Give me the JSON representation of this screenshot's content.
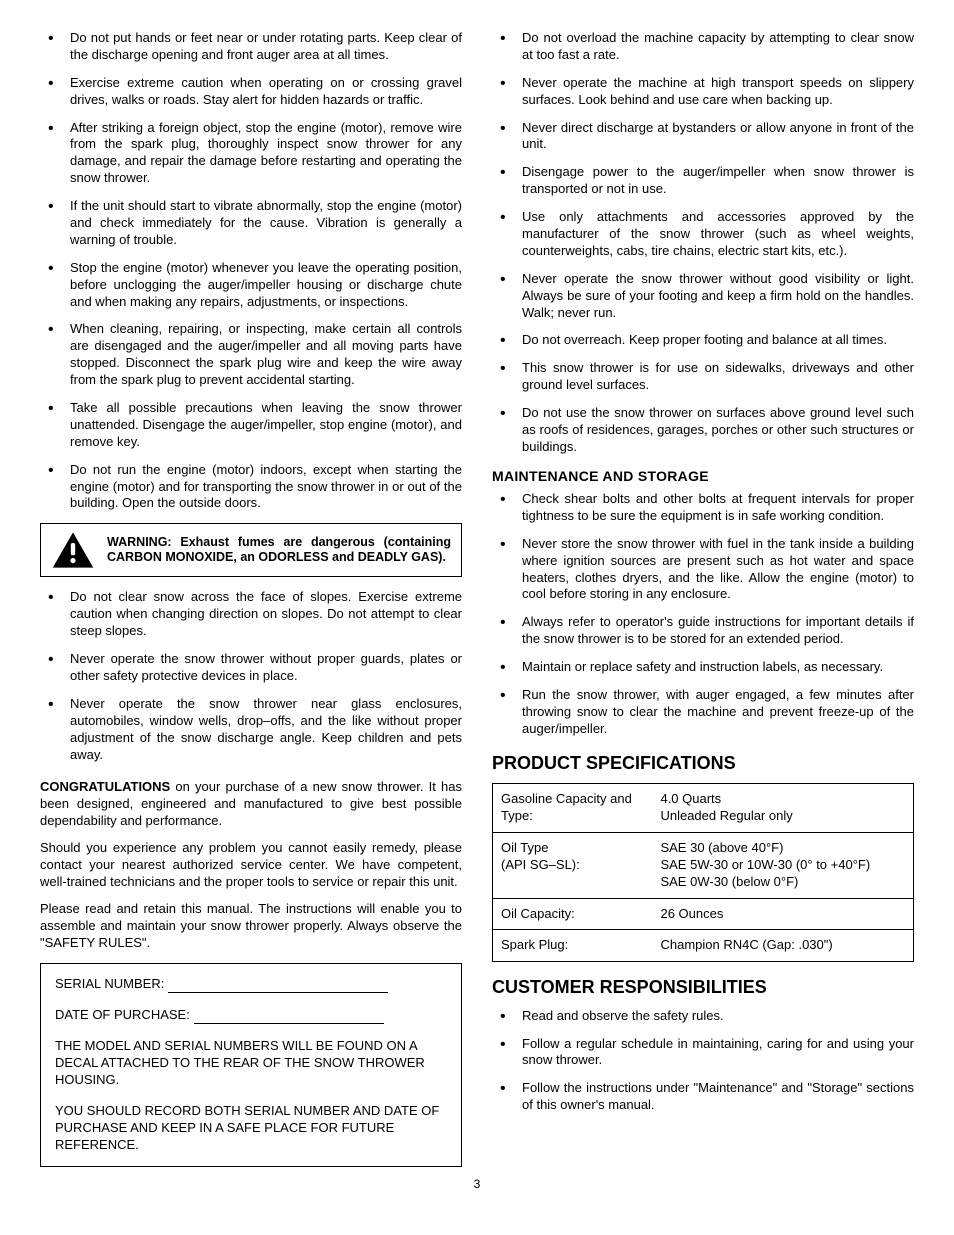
{
  "left_bullets_1": [
    "Do not put hands or feet near or under rotating parts. Keep clear of the discharge opening and front auger area at all times.",
    "Exercise extreme caution when operating on or crossing gravel drives, walks or roads. Stay alert for hidden hazards or traffic.",
    "After striking a foreign object, stop the engine (motor), remove wire from the spark plug, thoroughly inspect snow thrower for any damage, and repair the damage before restarting and operating the snow thrower.",
    "If the unit should start to vibrate abnormally, stop the engine (motor) and check immediately for the cause. Vibration is generally a warning of trouble.",
    "Stop the engine (motor) whenever you leave the operating position, before unclogging the auger/impeller housing or discharge chute and when making any repairs, adjustments, or inspections.",
    "When cleaning, repairing, or inspecting, make certain all controls are disengaged and the auger/impeller and all moving parts have stopped. Disconnect the spark plug wire and keep the wire away from the spark plug to prevent accidental starting.",
    "Take all possible precautions when leaving the snow thrower unattended. Disengage the auger/impeller, stop engine (motor), and remove key.",
    "Do not run the engine (motor) indoors, except when starting the engine (motor) and for transporting the snow thrower in or out of the building. Open the outside doors."
  ],
  "warning": "WARNING:  Exhaust fumes are dangerous (containing CARBON MONOXIDE, an ODORLESS and DEADLY GAS).",
  "left_bullets_2": [
    "Do not clear snow across the face of slopes. Exercise extreme caution when changing direction on slopes. Do not attempt to clear steep slopes.",
    "Never operate the snow thrower without proper guards, plates or other safety protective devices in place.",
    "Never operate the snow thrower near glass enclosures, automobiles, window wells, drop–offs, and the like without proper adjustment of the snow discharge angle. Keep children and pets away."
  ],
  "congrats_label": "CONGRATULATIONS",
  "congrats_text": " on your purchase of a new snow thrower.  It has been designed, engineered and manufactured to give best possible dependability and performance.",
  "para2": "Should you experience any problem you cannot easily remedy, please contact your nearest authorized service center.  We have competent, well-trained technicians and the proper tools to service or repair this unit.",
  "para3": "Please read and retain this manual.  The instructions will enable you to assemble and maintain your snow thrower properly.  Always observe the \"SAFETY RULES\".",
  "box": {
    "serial": "SERIAL NUMBER:",
    "date": "DATE OF PURCHASE:",
    "note1": "THE MODEL AND SERIAL NUMBERS WILL BE FOUND ON A DECAL ATTACHED TO THE REAR OF THE SNOW THROWER HOUSING.",
    "note2": "YOU SHOULD RECORD BOTH SERIAL NUMBER AND DATE OF PURCHASE AND KEEP IN A SAFE PLACE FOR FUTURE REFERENCE."
  },
  "right_bullets_1": [
    "Do not overload the machine capacity by attempting to clear snow at too fast a rate.",
    "Never operate the machine at high transport speeds on slippery surfaces. Look behind and use care when backing up.",
    "Never direct discharge at bystanders or allow anyone in front of the unit.",
    "Disengage power to the auger/impeller when snow thrower is transported or not in use.",
    "Use only attachments and accessories approved by the manufacturer of the snow thrower (such as wheel weights, counterweights, cabs, tire chains, electric start kits, etc.).",
    "Never operate the snow thrower without good visibility or light. Always be sure of your footing and keep a firm hold on the handles. Walk; never run.",
    "Do not overreach. Keep proper footing and balance at all times.",
    "This snow thrower is for use on sidewalks, driveways and other ground level surfaces.",
    "Do not use the snow thrower on surfaces above ground level such as roofs of residences, garages, porches or other such structures or buildings."
  ],
  "maint_heading": "MAINTENANCE AND STORAGE",
  "right_bullets_2": [
    "Check shear bolts and other bolts at frequent intervals for proper tightness to be sure the equipment is in safe working condition.",
    "Never store the snow thrower with fuel in the tank inside a building where ignition sources are present such as hot water and space heaters, clothes dryers, and the like. Allow the engine (motor) to cool before storing in any enclosure.",
    "Always refer to operator's guide instructions for important details if the snow thrower is to be stored for an extended period.",
    "Maintain or replace safety and instruction labels, as necessary.",
    "Run the snow thrower, with auger engaged, a few minutes after throwing snow to clear the machine and prevent freeze-up of the auger/impeller."
  ],
  "spec_heading": "PRODUCT SPECIFICATIONS",
  "specs": [
    {
      "label": "Gasoline Capacity and Type:",
      "value": "4.0 Quarts\nUnleaded Regular only"
    },
    {
      "label": "Oil Type\n(API SG–SL):",
      "value": "SAE 30 (above 40°F)\nSAE 5W-30 or 10W-30 (0° to +40°F)\nSAE 0W-30 (below 0°F)"
    },
    {
      "label": "Oil Capacity:",
      "value": "26 Ounces"
    },
    {
      "label": "Spark Plug:",
      "value": "Champion RN4C (Gap:  .030\")"
    }
  ],
  "cust_heading": "CUSTOMER RESPONSIBILITIES",
  "cust_bullets": [
    "Read and observe the safety rules.",
    "Follow a regular schedule in maintaining, caring for and using your snow thrower.",
    "Follow the instructions under \"Maintenance\" and \"Storage\" sections of this owner's manual."
  ],
  "page_num": "3"
}
